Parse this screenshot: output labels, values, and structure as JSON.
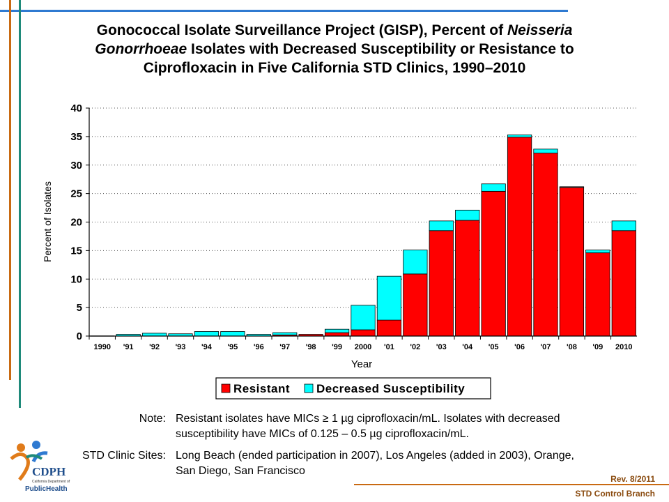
{
  "title": {
    "line1_pre": "Gonococcal Isolate Surveillance Project (GISP), Percent of ",
    "line1_ital": "Neisseria",
    "line2_ital": "Gonorrhoeae",
    "line2_post": " Isolates with Decreased Susceptibility or Resistance to",
    "line3": "Ciprofloxacin in Five California STD Clinics, 1990–2010"
  },
  "chart_data": {
    "type": "bar",
    "stacked": true,
    "categories": [
      "1990",
      "'91",
      "'92",
      "'93",
      "'94",
      "'95",
      "'96",
      "'97",
      "'98",
      "'99",
      "2000",
      "'01",
      "'02",
      "'03",
      "'04",
      "'05",
      "'06",
      "'07",
      "'08",
      "'09",
      "2010"
    ],
    "series": [
      {
        "name": "Resistant",
        "color": "#ff0000",
        "values": [
          0,
          0,
          0,
          0,
          0,
          0,
          0,
          0.2,
          0.3,
          0.6,
          1.1,
          2.8,
          10.9,
          18.5,
          20.3,
          25.4,
          34.9,
          32.1,
          26.1,
          14.6,
          18.5
        ]
      },
      {
        "name": "Decreased Susceptibility",
        "color": "#00ffff",
        "values": [
          0,
          0.3,
          0.5,
          0.4,
          0.8,
          0.8,
          0.3,
          0.4,
          0,
          0.6,
          4.3,
          7.7,
          4.2,
          1.7,
          1.8,
          1.3,
          0.4,
          0.7,
          0.1,
          0.5,
          1.7
        ]
      }
    ],
    "ylabel": "Percent of Isolates",
    "xlabel": "Year",
    "ylim": [
      0,
      40
    ],
    "yticks": [
      0,
      5,
      10,
      15,
      20,
      25,
      30,
      35,
      40
    ],
    "grid": true,
    "legend_position": "bottom-center"
  },
  "notes": {
    "note_label": "Note:",
    "note_line1": "Resistant isolates have MICs ≥ 1 µg ciprofloxacin/mL.  Isolates with decreased",
    "note_line2": "susceptibility have MICs of 0.125 – 0.5 µg ciprofloxacin/mL.",
    "sites_label": "STD Clinic Sites:",
    "sites_line1": "Long Beach (ended participation in 2007), Los Angeles (added in 2003), Orange,",
    "sites_line2": "San Diego, San Francisco"
  },
  "footer": {
    "rev": "Rev. 8/2011",
    "branch": "STD Control Branch",
    "logo_text": "CDPH",
    "logo_sub1": "California Department of",
    "logo_sub2": "PublicHealth"
  },
  "colors": {
    "orange_line": "#c96a12",
    "teal_line": "#1f8a7a",
    "blue_line": "#2f7ad1"
  }
}
